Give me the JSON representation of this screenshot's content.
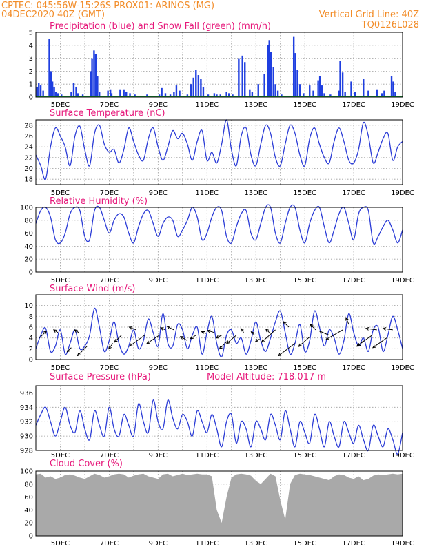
{
  "header": {
    "line1": "CPTEC:   045:56W-15:26S   PROX01: ARINOS (MG)",
    "line2": "04DEC2020 40Z (GMT)",
    "right1": "Vertical Grid Line: 40Z",
    "right2": "TQ0126L028"
  },
  "colors": {
    "header": "#f28c28",
    "panel_title": "#e6187a",
    "line": "#2a3bd6",
    "precip": "#1f3fe0",
    "snow": "#1aa33a",
    "cloud": "#a9a9a9",
    "arrow": "#000000"
  },
  "x_axis": {
    "labels": [
      "5DEC",
      "7DEC",
      "9DEC",
      "11DEC",
      "13DEC",
      "15DEC",
      "17DEC",
      "19DEC"
    ],
    "label_days": [
      5,
      7,
      9,
      11,
      13,
      15,
      17,
      19
    ],
    "range_days": [
      4.0,
      19.0
    ],
    "vertical_grid_days": [
      5,
      6,
      7,
      8,
      9,
      10,
      11,
      12,
      13,
      14,
      15,
      16,
      17,
      18
    ]
  },
  "chart_data": [
    {
      "type": "bar",
      "title": "Precipitation (blue) and Snow Fall (green) (mm/h)",
      "ylim": [
        0,
        5
      ],
      "yticks": [
        0,
        1,
        2,
        3,
        4,
        5
      ],
      "series": [
        {
          "name": "Precipitation",
          "color": "#1f3fe0",
          "x": [
            4.05,
            4.12,
            4.2,
            4.3,
            4.55,
            4.62,
            4.68,
            4.75,
            4.82,
            4.9,
            5.05,
            5.45,
            5.55,
            5.65,
            5.72,
            5.92,
            6.25,
            6.3,
            6.38,
            6.45,
            6.52,
            6.6,
            6.95,
            7.05,
            7.1,
            7.45,
            7.6,
            7.7,
            7.85,
            8.05,
            8.55,
            9.05,
            9.15,
            9.3,
            9.5,
            9.65,
            9.75,
            9.88,
            10.2,
            10.35,
            10.45,
            10.55,
            10.65,
            10.75,
            10.85,
            11.05,
            11.3,
            11.4,
            11.55,
            11.8,
            11.9,
            12.05,
            12.3,
            12.45,
            12.55,
            12.75,
            12.85,
            13.1,
            13.35,
            13.5,
            13.55,
            13.62,
            13.72,
            13.8,
            13.9,
            14.05,
            14.55,
            14.62,
            14.7,
            14.8,
            14.95,
            15.2,
            15.35,
            15.55,
            15.62,
            15.7,
            15.8,
            16.05,
            16.4,
            16.45,
            16.55,
            16.65,
            16.9,
            17.05,
            17.4,
            17.6,
            17.95,
            18.15,
            18.25,
            18.55,
            18.62,
            18.7
          ],
          "values": [
            0.8,
            1.1,
            0.9,
            0.5,
            4.5,
            2.0,
            1.2,
            0.8,
            0.4,
            0.3,
            0.2,
            0.4,
            1.1,
            0.8,
            0.3,
            0.2,
            2.0,
            3.0,
            3.6,
            3.3,
            1.6,
            0.4,
            0.5,
            0.6,
            0.3,
            0.6,
            0.6,
            0.4,
            0.3,
            0.2,
            0.2,
            0.2,
            0.7,
            0.3,
            0.2,
            0.4,
            0.9,
            0.5,
            0.2,
            1.0,
            1.5,
            2.1,
            1.7,
            1.4,
            0.8,
            0.2,
            0.3,
            0.2,
            0.2,
            0.4,
            0.3,
            0.2,
            3.0,
            3.2,
            2.7,
            0.6,
            0.4,
            1.0,
            1.8,
            4.0,
            4.4,
            3.5,
            2.3,
            1.0,
            0.5,
            0.2,
            4.7,
            3.4,
            2.1,
            1.0,
            0.3,
            0.9,
            0.5,
            1.3,
            1.6,
            0.9,
            0.3,
            0.2,
            0.5,
            2.8,
            1.9,
            0.4,
            1.2,
            0.4,
            1.4,
            0.5,
            0.6,
            0.3,
            0.5,
            1.6,
            1.2,
            0.4
          ]
        },
        {
          "name": "Snow Fall",
          "color": "#1aa33a",
          "x": [
            4.0,
            19.0
          ],
          "values": [
            0,
            0
          ]
        }
      ]
    },
    {
      "type": "line",
      "title": "Surface Temperature (nC)",
      "ylim": [
        17,
        29
      ],
      "yticks": [
        18,
        20,
        22,
        24,
        26,
        28
      ],
      "x": [
        4.0,
        4.2,
        4.4,
        4.6,
        4.8,
        5.0,
        5.2,
        5.4,
        5.6,
        5.8,
        6.0,
        6.2,
        6.4,
        6.6,
        6.8,
        7.0,
        7.2,
        7.4,
        7.6,
        7.8,
        8.0,
        8.2,
        8.4,
        8.6,
        8.8,
        9.0,
        9.2,
        9.4,
        9.6,
        9.8,
        10.0,
        10.2,
        10.4,
        10.6,
        10.8,
        11.0,
        11.2,
        11.4,
        11.6,
        11.8,
        12.0,
        12.2,
        12.4,
        12.6,
        12.8,
        13.0,
        13.2,
        13.4,
        13.6,
        13.8,
        14.0,
        14.2,
        14.4,
        14.6,
        14.8,
        15.0,
        15.2,
        15.4,
        15.6,
        15.8,
        16.0,
        16.2,
        16.4,
        16.6,
        16.8,
        17.0,
        17.2,
        17.4,
        17.6,
        17.8,
        18.0,
        18.2,
        18.4,
        18.6,
        18.8,
        19.0
      ],
      "values": [
        22.5,
        20.5,
        18.0,
        24.0,
        27.5,
        26.0,
        24.0,
        20.5,
        26.0,
        27.8,
        23.5,
        20.5,
        26.5,
        28.0,
        24.5,
        23.0,
        23.5,
        21.0,
        23.5,
        27.5,
        25.0,
        22.5,
        21.5,
        25.5,
        27.5,
        24.0,
        21.5,
        24.0,
        27.0,
        25.5,
        26.5,
        24.5,
        21.5,
        25.0,
        27.0,
        21.5,
        23.0,
        21.0,
        24.5,
        29.0,
        23.5,
        20.5,
        26.0,
        27.5,
        22.5,
        20.5,
        24.5,
        28.0,
        26.5,
        22.0,
        20.5,
        24.5,
        28.0,
        26.5,
        22.5,
        20.5,
        25.5,
        27.5,
        24.5,
        22.0,
        21.0,
        25.0,
        27.5,
        25.0,
        21.5,
        21.0,
        23.5,
        28.5,
        26.0,
        21.0,
        23.0,
        25.5,
        26.5,
        21.5,
        24.0,
        25.0
      ]
    },
    {
      "type": "line",
      "title": "Relative Humidity (%)",
      "ylim": [
        0,
        100
      ],
      "yticks": [
        0,
        20,
        40,
        60,
        80,
        100
      ],
      "x": [
        4.0,
        4.2,
        4.4,
        4.6,
        4.8,
        5.0,
        5.2,
        5.4,
        5.6,
        5.8,
        6.0,
        6.2,
        6.4,
        6.6,
        6.8,
        7.0,
        7.2,
        7.4,
        7.6,
        7.8,
        8.0,
        8.2,
        8.4,
        8.6,
        8.8,
        9.0,
        9.2,
        9.4,
        9.6,
        9.8,
        10.0,
        10.2,
        10.4,
        10.6,
        10.8,
        11.0,
        11.2,
        11.4,
        11.6,
        11.8,
        12.0,
        12.2,
        12.4,
        12.6,
        12.8,
        13.0,
        13.2,
        13.4,
        13.6,
        13.8,
        14.0,
        14.2,
        14.4,
        14.6,
        14.8,
        15.0,
        15.2,
        15.4,
        15.6,
        15.8,
        16.0,
        16.2,
        16.4,
        16.6,
        16.8,
        17.0,
        17.2,
        17.4,
        17.6,
        17.8,
        18.0,
        18.2,
        18.4,
        18.6,
        18.8,
        19.0
      ],
      "values": [
        75,
        95,
        100,
        85,
        50,
        45,
        60,
        90,
        100,
        95,
        55,
        50,
        95,
        100,
        80,
        60,
        80,
        90,
        85,
        60,
        45,
        70,
        90,
        95,
        75,
        55,
        75,
        85,
        80,
        55,
        65,
        80,
        100,
        85,
        50,
        60,
        85,
        100,
        95,
        55,
        45,
        70,
        90,
        95,
        60,
        50,
        75,
        100,
        100,
        60,
        45,
        75,
        100,
        100,
        65,
        45,
        75,
        95,
        100,
        70,
        45,
        65,
        90,
        100,
        75,
        50,
        90,
        100,
        95,
        45,
        55,
        70,
        80,
        65,
        45,
        65
      ]
    },
    {
      "type": "line",
      "title": "Surface Wind (m/s)",
      "ylim": [
        0,
        12
      ],
      "yticks": [
        0,
        2,
        4,
        6,
        8,
        10
      ],
      "x": [
        4.0,
        4.2,
        4.4,
        4.6,
        4.8,
        5.0,
        5.2,
        5.4,
        5.6,
        5.8,
        6.0,
        6.2,
        6.4,
        6.6,
        6.8,
        7.0,
        7.2,
        7.4,
        7.6,
        7.8,
        8.0,
        8.2,
        8.4,
        8.6,
        8.8,
        9.0,
        9.2,
        9.4,
        9.6,
        9.8,
        10.0,
        10.2,
        10.4,
        10.6,
        10.8,
        11.0,
        11.2,
        11.4,
        11.6,
        11.8,
        12.0,
        12.2,
        12.4,
        12.6,
        12.8,
        13.0,
        13.2,
        13.4,
        13.6,
        13.8,
        14.0,
        14.2,
        14.4,
        14.6,
        14.8,
        15.0,
        15.2,
        15.4,
        15.6,
        15.8,
        16.0,
        16.2,
        16.4,
        16.6,
        16.8,
        17.0,
        17.2,
        17.4,
        17.6,
        17.8,
        18.0,
        18.2,
        18.4,
        18.6,
        18.8,
        19.0
      ],
      "values": [
        2.0,
        4.5,
        5.8,
        1.5,
        2.5,
        5.5,
        1.0,
        3.0,
        5.5,
        2.0,
        2.5,
        4.5,
        9.5,
        6.0,
        1.5,
        3.5,
        7.0,
        3.0,
        1.0,
        2.5,
        5.5,
        2.0,
        3.5,
        7.5,
        5.0,
        2.5,
        8.5,
        3.0,
        2.5,
        6.5,
        5.5,
        2.0,
        4.5,
        6.0,
        1.0,
        5.0,
        8.0,
        3.0,
        0.5,
        4.5,
        5.5,
        3.0,
        4.0,
        1.0,
        3.5,
        7.0,
        3.5,
        1.5,
        4.0,
        7.0,
        9.0,
        5.0,
        1.0,
        3.0,
        6.5,
        1.5,
        3.5,
        9.0,
        6.0,
        2.5,
        5.5,
        4.0,
        1.0,
        3.5,
        8.5,
        5.0,
        2.5,
        4.0,
        1.5,
        5.5,
        6.0,
        1.5,
        4.5,
        8.0,
        5.5,
        2.0
      ],
      "arrows": [
        {
          "x": 4.15,
          "y": 4.0,
          "dx": 10,
          "dy": -10
        },
        {
          "x": 4.9,
          "y": 5.0,
          "dx": -6,
          "dy": -4
        },
        {
          "x": 5.45,
          "y": 2.2,
          "dx": -6,
          "dy": 6
        },
        {
          "x": 5.75,
          "y": 5.0,
          "dx": -6,
          "dy": -4
        },
        {
          "x": 6.1,
          "y": 2.5,
          "dx": -14,
          "dy": 14
        },
        {
          "x": 7.15,
          "y": 3.0,
          "dx": -6,
          "dy": 8
        },
        {
          "x": 7.5,
          "y": 4.5,
          "dx": -10,
          "dy": 10
        },
        {
          "x": 8.1,
          "y": 5.5,
          "dx": -10,
          "dy": -4
        },
        {
          "x": 8.45,
          "y": 4.5,
          "dx": -22,
          "dy": 16
        },
        {
          "x": 9.05,
          "y": 4.5,
          "dx": -18,
          "dy": 12
        },
        {
          "x": 9.3,
          "y": 5.5,
          "dx": -7,
          "dy": -3
        },
        {
          "x": 9.65,
          "y": 5.5,
          "dx": -10,
          "dy": -5
        },
        {
          "x": 10.2,
          "y": 3.5,
          "dx": -10,
          "dy": -6
        },
        {
          "x": 10.55,
          "y": 4.5,
          "dx": -8,
          "dy": 5
        },
        {
          "x": 10.95,
          "y": 4.8,
          "dx": -6,
          "dy": -3
        },
        {
          "x": 11.3,
          "y": 5.0,
          "dx": -10,
          "dy": -3
        },
        {
          "x": 11.6,
          "y": 4.5,
          "dx": -8,
          "dy": 4
        },
        {
          "x": 11.85,
          "y": 3.5,
          "dx": -12,
          "dy": 12
        },
        {
          "x": 12.2,
          "y": 4.5,
          "dx": -14,
          "dy": 12
        },
        {
          "x": 12.5,
          "y": 5.0,
          "dx": -4,
          "dy": -6
        },
        {
          "x": 12.95,
          "y": 4.5,
          "dx": -5,
          "dy": -5
        },
        {
          "x": 13.15,
          "y": 3.8,
          "dx": -6,
          "dy": 4
        },
        {
          "x": 13.55,
          "y": 5.0,
          "dx": -5,
          "dy": -5
        },
        {
          "x": 13.8,
          "y": 5.5,
          "dx": -20,
          "dy": 18
        },
        {
          "x": 14.35,
          "y": 6.0,
          "dx": -8,
          "dy": -8
        },
        {
          "x": 14.6,
          "y": 3.0,
          "dx": -24,
          "dy": 18
        },
        {
          "x": 15.2,
          "y": 4.2,
          "dx": -16,
          "dy": 14
        },
        {
          "x": 15.45,
          "y": 5.5,
          "dx": -8,
          "dy": -8
        },
        {
          "x": 16.0,
          "y": 4.5,
          "dx": -14,
          "dy": -6
        },
        {
          "x": 16.55,
          "y": 5.5,
          "dx": -24,
          "dy": 14
        },
        {
          "x": 16.8,
          "y": 6.5,
          "dx": -4,
          "dy": -10
        },
        {
          "x": 17.4,
          "y": 3.5,
          "dx": -8,
          "dy": 8
        },
        {
          "x": 17.75,
          "y": 4.5,
          "dx": -22,
          "dy": 16
        },
        {
          "x": 17.95,
          "y": 5.5,
          "dx": -16,
          "dy": -2
        },
        {
          "x": 18.35,
          "y": 4.0,
          "dx": -20,
          "dy": 14
        },
        {
          "x": 18.6,
          "y": 5.5,
          "dx": -14,
          "dy": -2
        }
      ]
    },
    {
      "type": "line",
      "title": "Surface Pressure (hPa)",
      "annotation": "Model Altitude: 718.017 m",
      "ylim": [
        928,
        937
      ],
      "yticks": [
        928,
        930,
        932,
        934,
        936
      ],
      "x": [
        4.0,
        4.2,
        4.4,
        4.6,
        4.8,
        5.0,
        5.2,
        5.4,
        5.6,
        5.8,
        6.0,
        6.2,
        6.4,
        6.6,
        6.8,
        7.0,
        7.2,
        7.4,
        7.6,
        7.8,
        8.0,
        8.2,
        8.4,
        8.6,
        8.8,
        9.0,
        9.2,
        9.4,
        9.6,
        9.8,
        10.0,
        10.2,
        10.4,
        10.6,
        10.8,
        11.0,
        11.2,
        11.4,
        11.6,
        11.8,
        12.0,
        12.2,
        12.4,
        12.6,
        12.8,
        13.0,
        13.2,
        13.4,
        13.6,
        13.8,
        14.0,
        14.2,
        14.4,
        14.6,
        14.8,
        15.0,
        15.2,
        15.4,
        15.6,
        15.8,
        16.0,
        16.2,
        16.4,
        16.6,
        16.8,
        17.0,
        17.2,
        17.4,
        17.6,
        17.8,
        18.0,
        18.2,
        18.4,
        18.6,
        18.8,
        19.0
      ],
      "values": [
        931.5,
        933.0,
        934.0,
        932.0,
        930.0,
        932.0,
        934.0,
        931.5,
        930.5,
        933.5,
        931.0,
        929.5,
        933.5,
        931.5,
        930.0,
        934.0,
        931.0,
        930.0,
        933.0,
        931.5,
        930.0,
        934.5,
        932.0,
        930.5,
        935.0,
        932.0,
        931.0,
        935.0,
        932.5,
        931.0,
        933.0,
        932.0,
        930.0,
        933.5,
        932.0,
        930.5,
        933.0,
        931.0,
        928.5,
        932.0,
        933.0,
        929.0,
        932.0,
        931.0,
        928.5,
        932.0,
        931.0,
        929.5,
        933.0,
        931.5,
        929.5,
        933.5,
        931.0,
        928.5,
        932.0,
        930.5,
        929.0,
        933.0,
        931.0,
        928.5,
        932.0,
        930.0,
        928.5,
        932.0,
        930.5,
        929.0,
        931.5,
        929.5,
        928.0,
        931.5,
        930.0,
        928.5,
        931.0,
        929.5,
        927.5,
        930.5
      ]
    },
    {
      "type": "area",
      "title": "Cloud Cover (%)",
      "ylim": [
        0,
        100
      ],
      "yticks": [
        0,
        20,
        40,
        60,
        80,
        100
      ],
      "x": [
        4.0,
        4.2,
        4.4,
        4.6,
        4.8,
        5.0,
        5.2,
        5.4,
        5.6,
        5.8,
        6.0,
        6.2,
        6.4,
        6.6,
        6.8,
        7.0,
        7.2,
        7.4,
        7.6,
        7.8,
        8.0,
        8.2,
        8.4,
        8.6,
        8.8,
        9.0,
        9.2,
        9.4,
        9.6,
        9.8,
        10.0,
        10.2,
        10.4,
        10.6,
        10.8,
        11.0,
        11.2,
        11.4,
        11.6,
        11.8,
        12.0,
        12.2,
        12.4,
        12.6,
        12.8,
        13.0,
        13.2,
        13.4,
        13.6,
        13.8,
        14.0,
        14.2,
        14.4,
        14.6,
        14.8,
        15.0,
        15.2,
        15.4,
        15.6,
        15.8,
        16.0,
        16.2,
        16.4,
        16.6,
        16.8,
        17.0,
        17.2,
        17.4,
        17.6,
        17.8,
        18.0,
        18.2,
        18.4,
        18.6,
        18.8,
        19.0
      ],
      "values": [
        95,
        96,
        90,
        92,
        88,
        90,
        94,
        95,
        93,
        90,
        88,
        92,
        96,
        94,
        90,
        92,
        95,
        96,
        95,
        90,
        93,
        95,
        96,
        92,
        90,
        88,
        95,
        96,
        92,
        94,
        96,
        94,
        95,
        96,
        95,
        95,
        92,
        40,
        20,
        60,
        90,
        95,
        96,
        95,
        93,
        85,
        80,
        88,
        96,
        92,
        55,
        25,
        80,
        94,
        96,
        95,
        94,
        92,
        90,
        88,
        86,
        92,
        95,
        94,
        90,
        88,
        92,
        86,
        88,
        93,
        95,
        94,
        95,
        96,
        95,
        96
      ]
    }
  ]
}
